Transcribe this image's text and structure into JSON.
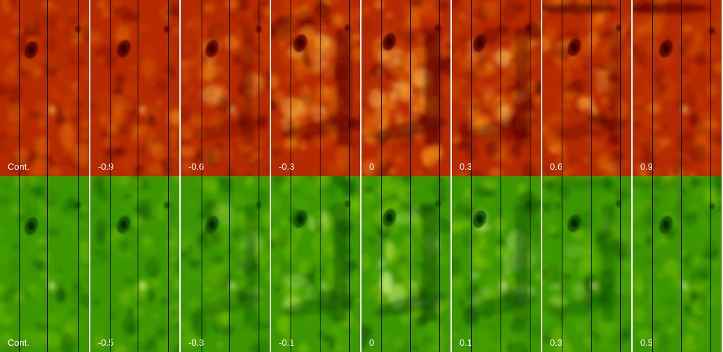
{
  "rows": [
    {
      "name": "red-row",
      "palette": {
        "base": "#b52a00",
        "dark": "#5a0600",
        "mid": "#d04a00",
        "bright": "#f08a10",
        "highlight": "#ffd060"
      },
      "panels": [
        {
          "label": "Cont.",
          "activity": 0.05
        },
        {
          "label": "-0.9",
          "activity": 0.15
        },
        {
          "label": "-0.6",
          "activity": 0.35
        },
        {
          "label": "-0.3",
          "activity": 0.8
        },
        {
          "label": "0",
          "activity": 1.0
        },
        {
          "label": "0.3",
          "activity": 0.75
        },
        {
          "label": "0.6",
          "activity": 0.4
        },
        {
          "label": "0.9",
          "activity": 0.15
        }
      ]
    },
    {
      "name": "green-row",
      "palette": {
        "base": "#3c9600",
        "dark": "#0c4a00",
        "mid": "#4fa800",
        "bright": "#86c800",
        "highlight": "#e8ff9a"
      },
      "panels": [
        {
          "label": "Cont.",
          "activity": 0.05
        },
        {
          "label": "-0.5",
          "activity": 0.2
        },
        {
          "label": "-0.3",
          "activity": 0.35
        },
        {
          "label": "-0.1",
          "activity": 0.7
        },
        {
          "label": "0",
          "activity": 0.9
        },
        {
          "label": "0.1",
          "activity": 0.65
        },
        {
          "label": "0.3",
          "activity": 0.35
        },
        {
          "label": "0.5",
          "activity": 0.2
        }
      ]
    }
  ]
}
